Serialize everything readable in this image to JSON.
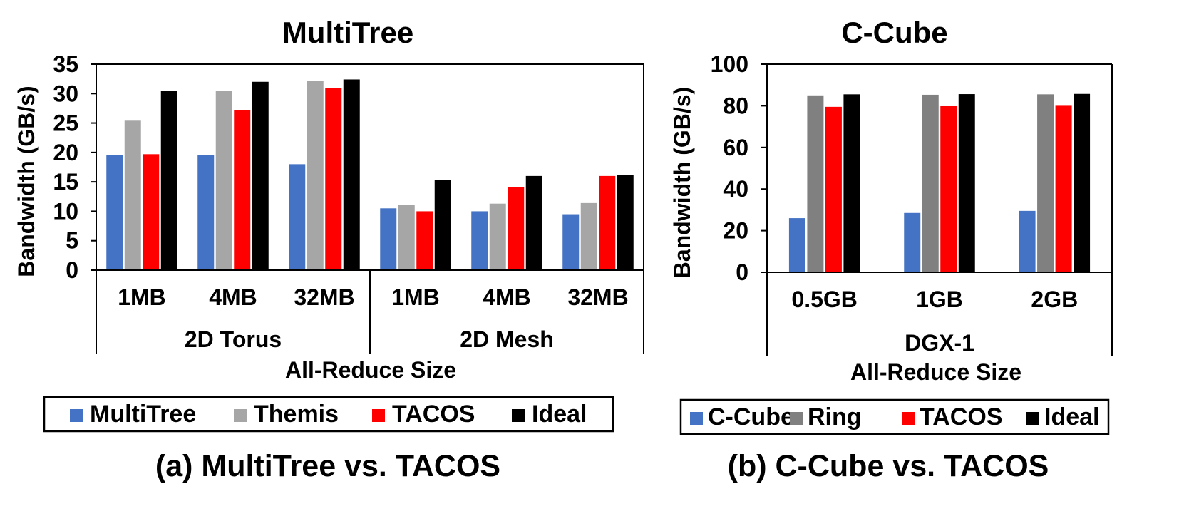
{
  "chart_data": [
    {
      "type": "bar",
      "title": "MultiTree",
      "ylabel": "Bandwidth (GB/s)",
      "xlabel": "All-Reduce Size",
      "ylim": [
        0,
        35
      ],
      "yticks": [
        "0",
        "5",
        "10",
        "15",
        "20",
        "25",
        "30",
        "35"
      ],
      "groups": [
        {
          "label": "2D Torus",
          "categories": [
            "1MB",
            "4MB",
            "32MB"
          ]
        },
        {
          "label": "2D Mesh",
          "categories": [
            "1MB",
            "4MB",
            "32MB"
          ]
        }
      ],
      "series": [
        {
          "name": "MultiTree",
          "color": "#4472c4",
          "values": [
            19.5,
            19.5,
            18.0,
            10.5,
            10.0,
            9.5
          ]
        },
        {
          "name": "Themis",
          "color": "#a6a6a6",
          "values": [
            25.4,
            30.4,
            32.2,
            11.1,
            11.3,
            11.4
          ]
        },
        {
          "name": "TACOS",
          "color": "#ff0000",
          "values": [
            19.7,
            27.2,
            30.9,
            10.0,
            14.1,
            16.0
          ]
        },
        {
          "name": "Ideal",
          "color": "#000000",
          "values": [
            30.5,
            32.0,
            32.4,
            15.3,
            16.0,
            16.2
          ]
        }
      ],
      "caption": "(a) MultiTree vs. TACOS"
    },
    {
      "type": "bar",
      "title": "C-Cube",
      "ylabel": "Bandwidth (GB/s)",
      "xlabel": "All-Reduce Size",
      "ylim": [
        0,
        100
      ],
      "yticks": [
        "0",
        "20",
        "40",
        "60",
        "80",
        "100"
      ],
      "groups": [
        {
          "label": "DGX-1",
          "categories": [
            "0.5GB",
            "1GB",
            "2GB"
          ]
        }
      ],
      "series": [
        {
          "name": "C-Cube",
          "color": "#4472c4",
          "values": [
            26,
            28.5,
            29.5
          ]
        },
        {
          "name": "Ring",
          "color": "#808080",
          "values": [
            85,
            85.3,
            85.5
          ]
        },
        {
          "name": "TACOS",
          "color": "#ff0000",
          "values": [
            79.5,
            79.8,
            80
          ]
        },
        {
          "name": "Ideal",
          "color": "#000000",
          "values": [
            85.5,
            85.6,
            85.7
          ]
        }
      ],
      "caption": "(b) C-Cube vs. TACOS"
    }
  ]
}
